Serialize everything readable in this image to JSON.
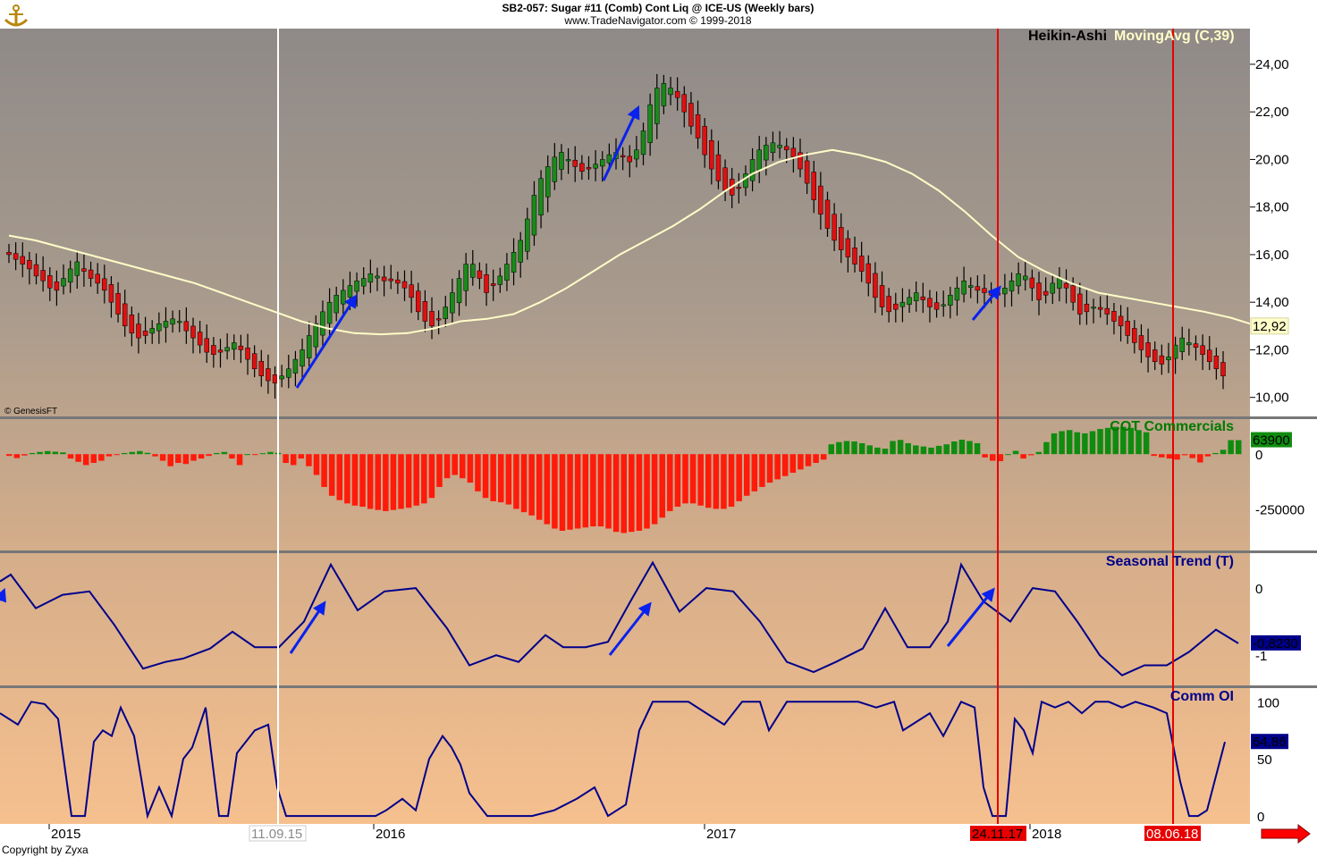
{
  "header": {
    "line1": "SB2-057:  Sugar #11 (Comb) Cont Liq @ ICE-US  (Weekly bars)",
    "line2": "www.TradeNavigator.com © 1999-2018",
    "logo": "anchor-logo"
  },
  "copyright": "Copyright by Zyxa",
  "genesis": "© GenesisFT",
  "colors": {
    "up": "#1a8a1a",
    "down": "#e01010",
    "ma": "#fffdc8",
    "blue": "#00008b",
    "arrow": "#0a22ee",
    "vline_red": "#e80000",
    "vline_white": "#ffffff",
    "green_title": "#007a00"
  },
  "chart_data": [
    {
      "type": "candlestick",
      "title": "Heikin-Ashi",
      "overlay_label": "MovingAvg (C,39)",
      "ylim": [
        9.2,
        25.5
      ],
      "y_ticks": [
        "24,00",
        "22,00",
        "20,00",
        "18,00",
        "16,00",
        "14,00",
        "12,00",
        "10,00"
      ],
      "last_ma_value": "12,92",
      "x_labels": [
        "2015",
        "2016",
        "2017",
        "2018"
      ],
      "close": [
        16.0,
        15.8,
        15.6,
        15.4,
        15.1,
        14.9,
        14.6,
        14.5,
        15.0,
        15.4,
        15.7,
        15.3,
        15.0,
        14.8,
        14.5,
        14.0,
        13.5,
        13.0,
        12.7,
        12.5,
        12.6,
        12.9,
        13.1,
        13.2,
        13.3,
        13.2,
        12.8,
        12.5,
        12.2,
        11.9,
        11.8,
        11.9,
        12.1,
        12.3,
        12.0,
        11.6,
        11.2,
        10.9,
        10.7,
        10.6,
        10.9,
        11.2,
        11.6,
        12.0,
        12.6,
        13.1,
        13.6,
        14.0,
        14.3,
        14.5,
        14.7,
        14.9,
        15.0,
        15.2,
        15.1,
        14.9,
        14.9,
        14.8,
        14.6,
        14.2,
        13.6,
        13.2,
        13.0,
        13.3,
        13.8,
        14.4,
        15.0,
        15.6,
        15.6,
        15.0,
        14.4,
        14.7,
        15.1,
        15.6,
        16.1,
        16.6,
        17.5,
        18.5,
        19.2,
        19.7,
        20.1,
        20.3,
        20.0,
        19.7,
        19.5,
        19.6,
        19.8,
        20.0,
        20.2,
        20.3,
        20.1,
        19.9,
        20.4,
        21.2,
        22.3,
        23.0,
        23.2,
        23.0,
        22.6,
        22.0,
        21.4,
        20.9,
        20.2,
        19.6,
        19.1,
        18.7,
        18.5,
        18.8,
        19.4,
        20.0,
        20.4,
        20.6,
        20.7,
        20.6,
        20.4,
        20.1,
        19.6,
        19.0,
        18.3,
        17.7,
        17.1,
        16.6,
        16.2,
        15.9,
        15.6,
        15.3,
        14.8,
        14.2,
        13.8,
        13.6,
        13.7,
        14.0,
        14.2,
        14.4,
        14.1,
        13.8,
        13.7,
        13.9,
        14.3,
        14.6,
        14.9,
        14.7,
        14.5,
        14.4,
        14.3,
        14.3,
        14.6,
        14.9,
        15.2,
        15.1,
        14.6,
        14.1,
        14.3,
        14.8,
        15.0,
        14.6,
        14.0,
        13.5,
        13.6,
        13.8,
        13.7,
        13.5,
        13.2,
        13.0,
        12.6,
        12.3,
        12.0,
        11.7,
        11.5,
        11.4,
        11.7,
        12.2,
        12.5,
        12.3,
        12.1,
        11.8,
        11.5,
        11.2,
        10.9
      ],
      "ma": [
        16.8,
        16.6,
        16.3,
        16.0,
        15.7,
        15.4,
        15.1,
        14.8,
        14.4,
        14.0,
        13.6,
        13.2,
        12.9,
        12.7,
        12.65,
        12.7,
        12.9,
        13.2,
        13.3,
        13.5,
        14.0,
        14.6,
        15.3,
        16.0,
        16.6,
        17.2,
        17.9,
        18.7,
        19.4,
        19.9,
        20.2,
        20.4,
        20.2,
        19.9,
        19.4,
        18.7,
        17.8,
        16.8,
        15.9,
        15.3,
        14.8,
        14.4,
        14.2,
        14.0,
        13.8,
        13.6,
        13.35,
        13.0
      ],
      "ma_start": 0,
      "ma_end": 183
    },
    {
      "type": "bar",
      "title": "COT Commercials",
      "last_value": "63900",
      "y_ticks": [
        "0",
        "-250000"
      ],
      "ylim": [
        -440000,
        160000
      ],
      "values": [
        -8,
        -18,
        -6,
        5,
        10,
        14,
        11,
        8,
        -20,
        -35,
        -50,
        -40,
        -30,
        -10,
        -4,
        5,
        10,
        14,
        6,
        -10,
        -30,
        -55,
        -40,
        -45,
        -30,
        -20,
        -8,
        5,
        10,
        -20,
        -50,
        0,
        -4,
        4,
        10,
        6,
        -40,
        -50,
        -20,
        -55,
        -95,
        -150,
        -190,
        -210,
        -225,
        -235,
        -240,
        -250,
        -255,
        -260,
        -255,
        -250,
        -245,
        -235,
        -225,
        -200,
        -150,
        -110,
        -95,
        -110,
        -130,
        -170,
        -200,
        -215,
        -220,
        -230,
        -250,
        -265,
        -280,
        -300,
        -320,
        -340,
        -350,
        -345,
        -340,
        -335,
        -330,
        -330,
        -340,
        -355,
        -360,
        -355,
        -350,
        -340,
        -320,
        -290,
        -260,
        -240,
        -225,
        -225,
        -235,
        -245,
        -250,
        -250,
        -240,
        -215,
        -190,
        -170,
        -150,
        -130,
        -115,
        -100,
        -85,
        -70,
        -55,
        -40,
        -25,
        45,
        55,
        60,
        58,
        50,
        40,
        30,
        25,
        60,
        65,
        50,
        40,
        35,
        30,
        38,
        45,
        58,
        66,
        60,
        50,
        -15,
        -30,
        -32,
        0,
        15,
        -20,
        -5,
        10,
        55,
        95,
        105,
        110,
        100,
        95,
        105,
        115,
        120,
        125,
        125,
        120,
        110,
        100,
        -8,
        -15,
        -20,
        -25,
        -5,
        -18,
        -38,
        -10,
        5,
        20,
        64,
        64
      ],
      "value_scale": 1000
    },
    {
      "type": "line",
      "title": "Seasonal Trend (T)",
      "last_value": "-0,8230",
      "y_ticks": [
        "0",
        "-1"
      ],
      "ylim": [
        -1.45,
        0.52
      ],
      "x": [
        0,
        12,
        40,
        70,
        100,
        128,
        160,
        185,
        205,
        235,
        260,
        285,
        312,
        340,
        370,
        400,
        430,
        465,
        500,
        525,
        555,
        580,
        610,
        630,
        655,
        680,
        705,
        730,
        760,
        790,
        820,
        850,
        880,
        910,
        935,
        965,
        990,
        1015,
        1040,
        1060,
        1075,
        1100,
        1130,
        1155,
        1180,
        1205,
        1230,
        1255,
        1280,
        1305,
        1330,
        1360,
        1385
      ],
      "values": [
        0.1,
        0.2,
        -0.3,
        -0.1,
        -0.05,
        -0.55,
        -1.2,
        -1.1,
        -1.05,
        -0.9,
        -0.65,
        -0.88,
        -0.88,
        -0.5,
        0.35,
        -0.33,
        -0.05,
        0.0,
        -0.6,
        -1.15,
        -1.0,
        -1.1,
        -0.7,
        -0.88,
        -0.88,
        -0.8,
        -0.2,
        0.38,
        -0.35,
        0.0,
        -0.05,
        -0.5,
        -1.1,
        -1.25,
        -1.1,
        -0.9,
        -0.3,
        -0.88,
        -0.88,
        -0.5,
        0.35,
        -0.2,
        -0.5,
        0.0,
        -0.05,
        -0.5,
        -1.0,
        -1.3,
        -1.15,
        -1.15,
        -0.95,
        -0.62,
        -0.823
      ]
    },
    {
      "type": "line",
      "title": "Comm OI",
      "last_value": "64,86",
      "y_ticks": [
        "100",
        "50",
        "0"
      ],
      "ylim": [
        -7,
        112
      ],
      "x": [
        0,
        20,
        35,
        50,
        65,
        80,
        95,
        105,
        115,
        125,
        135,
        150,
        165,
        178,
        192,
        205,
        215,
        230,
        245,
        255,
        265,
        285,
        300,
        310,
        320,
        335,
        355,
        375,
        390,
        410,
        420,
        432,
        450,
        465,
        480,
        495,
        505,
        515,
        525,
        545,
        570,
        595,
        620,
        645,
        665,
        680,
        690,
        700,
        715,
        730,
        750,
        770,
        790,
        810,
        830,
        850,
        860,
        880,
        900,
        920,
        940,
        960,
        980,
        1000,
        1010,
        1040,
        1055,
        1075,
        1090,
        1100,
        1110,
        1125,
        1135,
        1145,
        1155,
        1165,
        1180,
        1195,
        1210,
        1225,
        1240,
        1255,
        1270,
        1290,
        1305,
        1320,
        1330,
        1340,
        1350,
        1360,
        1370
      ],
      "values": [
        90,
        80,
        100,
        98,
        85,
        0,
        0,
        65,
        75,
        70,
        95,
        70,
        0,
        25,
        0,
        50,
        60,
        95,
        0,
        0,
        55,
        75,
        80,
        25,
        0,
        0,
        0,
        0,
        0,
        0,
        0,
        5,
        15,
        5,
        50,
        70,
        60,
        45,
        20,
        0,
        0,
        0,
        5,
        15,
        25,
        0,
        5,
        10,
        75,
        100,
        100,
        100,
        90,
        80,
        100,
        100,
        75,
        100,
        100,
        100,
        100,
        100,
        95,
        100,
        75,
        90,
        70,
        100,
        95,
        25,
        0,
        0,
        85,
        75,
        55,
        100,
        95,
        100,
        90,
        100,
        100,
        95,
        100,
        95,
        90,
        30,
        0,
        0,
        5,
        35,
        64.86
      ]
    }
  ],
  "date_markers": [
    "11.09.15",
    "24.11.17",
    "08.06.18"
  ]
}
